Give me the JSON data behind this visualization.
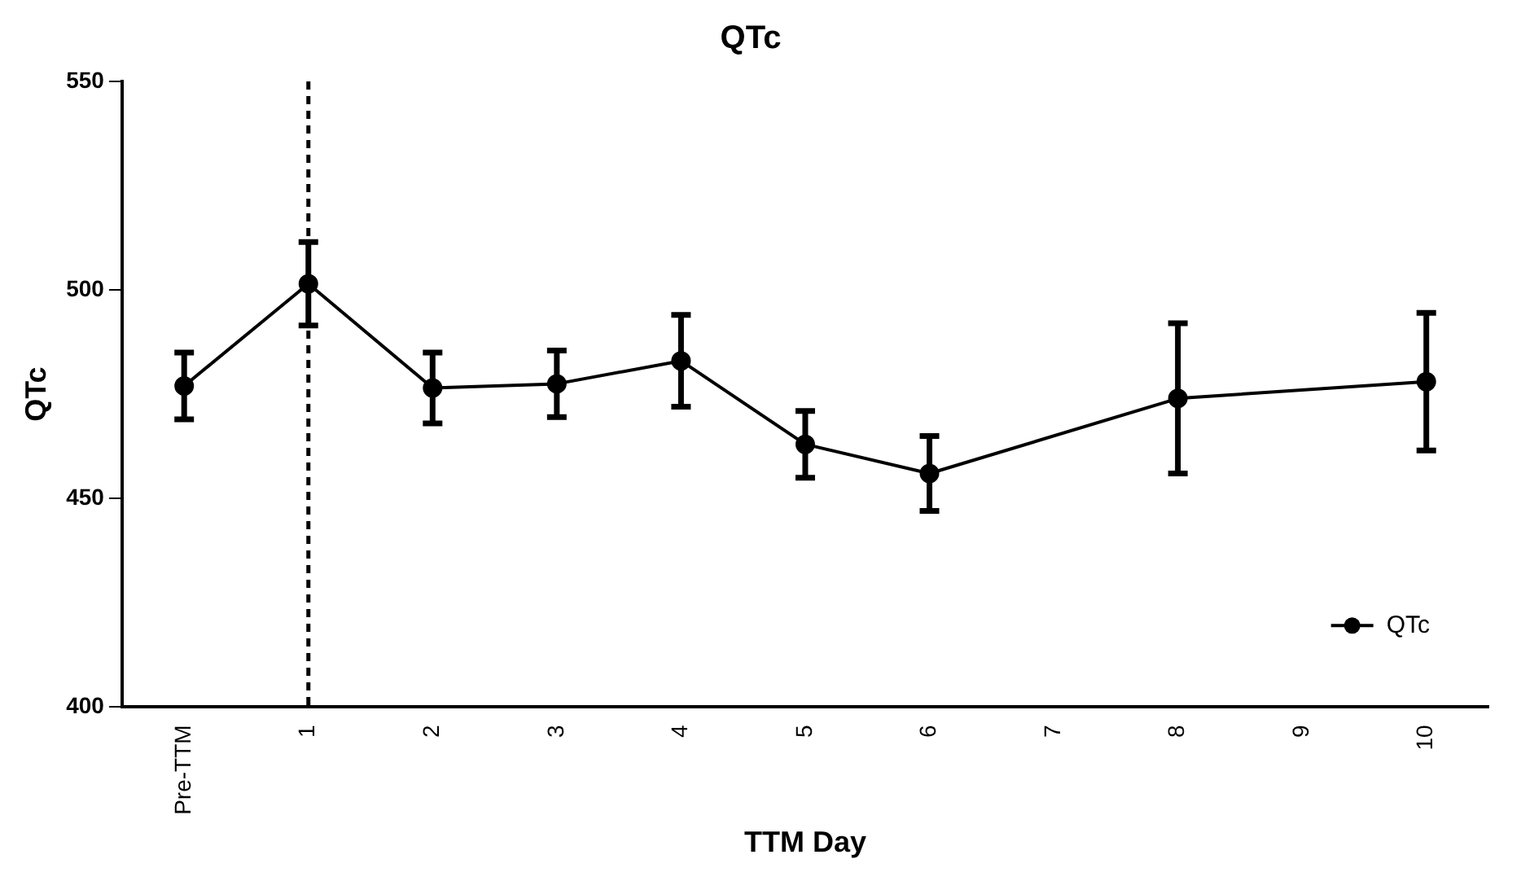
{
  "chart_data": {
    "type": "line",
    "title": "QTc",
    "xlabel": "TTM Day",
    "ylabel": "QTc",
    "categories": [
      "Pre-TTM",
      "1",
      "2",
      "3",
      "4",
      "5",
      "6",
      "7",
      "8",
      "9",
      "10"
    ],
    "series": [
      {
        "name": "QTc",
        "color": "#000000",
        "values": [
          477,
          501.5,
          476.5,
          477.5,
          483,
          463,
          456,
          null,
          474,
          null,
          478
        ],
        "errors": [
          8,
          10,
          8.5,
          8,
          11,
          8,
          9,
          null,
          18,
          null,
          16.5
        ]
      }
    ],
    "ylim": [
      400,
      550
    ],
    "yticks": [
      400,
      450,
      500,
      550
    ],
    "ref_lines": [
      {
        "axis": "x",
        "value": "1",
        "line_style": "dashed",
        "color": "#000000"
      }
    ],
    "grid": false,
    "legend": "bottom right",
    "marker": "circle",
    "line_style": "solid"
  }
}
